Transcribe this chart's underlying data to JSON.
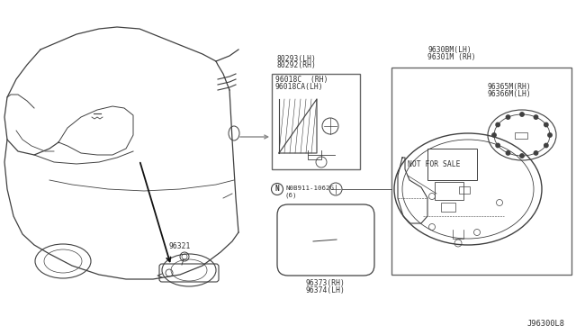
{
  "bg_color": "#ffffff",
  "diagram_id": "J96300L8",
  "labels": {
    "mirror_inner": "96321",
    "bolt_label": "N0B911-1062G",
    "bolt_qty": "(6)",
    "mirror_glass_rh": "96373(RH)",
    "mirror_glass_lh": "96374(LH)",
    "door_rh": "80292(RH)",
    "door_lh": "80293(LH)",
    "bracket_rh": "96018C  (RH)",
    "bracket_lh": "96018CA(LH)",
    "assy_rh": "96301M (RH)",
    "assy_lh": "9630BM(LH)",
    "cover_rh": "96365M(RH)",
    "cover_lh": "96366M(LH)",
    "not_for_sale": "NOT FOR SALE"
  },
  "line_color": "#404040",
  "text_color": "#303030",
  "box_edge_color": "#666666"
}
